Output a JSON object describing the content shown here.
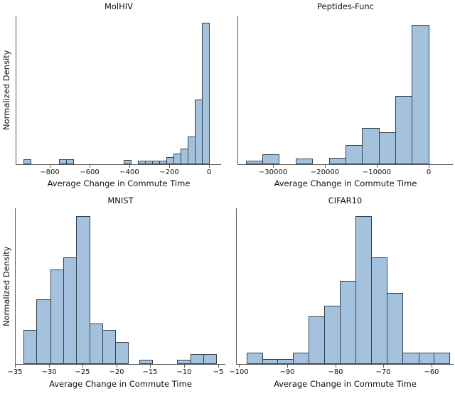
{
  "figure": {
    "background": "#ffffff",
    "bar_fill": "#a4c2de",
    "bar_edge": "#36414d",
    "spine_color": "#5a5a5a",
    "text_color": "#111111"
  },
  "chart_data": [
    {
      "type": "bar",
      "subtype": "histogram",
      "title": "MolHIV",
      "xlabel": "Average Change in Commute Time",
      "ylabel": "Normalized Density",
      "xlim": [
        -968,
        62
      ],
      "xticks": [
        -800,
        -600,
        -400,
        -200,
        0
      ],
      "yticks": [],
      "grid": false,
      "legend": false,
      "peak_fraction": 0.95,
      "bins": [
        {
          "x0": -930.8,
          "x1": -895.0,
          "h": 0.033
        },
        {
          "x0": -751.8,
          "x1": -716.0,
          "h": 0.033
        },
        {
          "x0": -716.0,
          "x1": -680.2,
          "h": 0.033
        },
        {
          "x0": -429.6,
          "x1": -393.8,
          "h": 0.03
        },
        {
          "x0": -358.0,
          "x1": -322.2,
          "h": 0.027
        },
        {
          "x0": -322.2,
          "x1": -286.4,
          "h": 0.027
        },
        {
          "x0": -286.4,
          "x1": -250.6,
          "h": 0.027
        },
        {
          "x0": -250.6,
          "x1": -214.8,
          "h": 0.027
        },
        {
          "x0": -214.8,
          "x1": -179.0,
          "h": 0.05
        },
        {
          "x0": -179.0,
          "x1": -143.2,
          "h": 0.075
        },
        {
          "x0": -143.2,
          "x1": -107.4,
          "h": 0.11
        },
        {
          "x0": -107.4,
          "x1": -71.6,
          "h": 0.195
        },
        {
          "x0": -71.6,
          "x1": -35.8,
          "h": 0.46
        },
        {
          "x0": -35.8,
          "x1": 0.0,
          "h": 1.0
        }
      ]
    },
    {
      "type": "bar",
      "subtype": "histogram",
      "title": "Peptides-Func",
      "xlabel": "Average Change in Commute Time",
      "ylabel": "",
      "xlim": [
        -36770,
        4700
      ],
      "xticks": [
        -30000,
        -20000,
        -10000,
        0
      ],
      "yticks": [],
      "grid": false,
      "legend": false,
      "peak_fraction": 0.94,
      "bins": [
        {
          "x0": -35310,
          "x1": -32100,
          "h": 0.025
        },
        {
          "x0": -32100,
          "x1": -28890,
          "h": 0.07
        },
        {
          "x0": -25680,
          "x1": -22470,
          "h": 0.04
        },
        {
          "x0": -19260,
          "x1": -16050,
          "h": 0.045
        },
        {
          "x0": -16050,
          "x1": -12840,
          "h": 0.135
        },
        {
          "x0": -12840,
          "x1": -9630,
          "h": 0.26
        },
        {
          "x0": -9630,
          "x1": -6420,
          "h": 0.23
        },
        {
          "x0": -6420,
          "x1": -3210,
          "h": 0.49
        },
        {
          "x0": -3210,
          "x1": 0,
          "h": 1.0
        }
      ]
    },
    {
      "type": "bar",
      "subtype": "histogram",
      "title": "MNIST",
      "xlabel": "Average Change in Commute Time",
      "ylabel": "Normalized Density",
      "xlim": [
        -34.9,
        -3.9
      ],
      "xticks": [
        -35,
        -30,
        -25,
        -20,
        -15,
        -10,
        -5
      ],
      "yticks": [],
      "grid": false,
      "legend": false,
      "peak_fraction": 0.95,
      "bins": [
        {
          "x0": -33.7,
          "x1": -31.8,
          "h": 0.23
        },
        {
          "x0": -31.8,
          "x1": -29.8,
          "h": 0.435
        },
        {
          "x0": -29.8,
          "x1": -27.9,
          "h": 0.64
        },
        {
          "x0": -27.9,
          "x1": -26.0,
          "h": 0.72
        },
        {
          "x0": -26.0,
          "x1": -24.0,
          "h": 1.0
        },
        {
          "x0": -24.0,
          "x1": -22.1,
          "h": 0.275
        },
        {
          "x0": -22.1,
          "x1": -20.2,
          "h": 0.232
        },
        {
          "x0": -20.2,
          "x1": -18.3,
          "h": 0.147
        },
        {
          "x0": -16.6,
          "x1": -14.7,
          "h": 0.027
        },
        {
          "x0": -11.0,
          "x1": -9.1,
          "h": 0.027
        },
        {
          "x0": -9.1,
          "x1": -7.2,
          "h": 0.067
        },
        {
          "x0": -7.2,
          "x1": -5.3,
          "h": 0.067
        }
      ]
    },
    {
      "type": "bar",
      "subtype": "histogram",
      "title": "CIFAR10",
      "xlabel": "Average Change in Commute Time",
      "ylabel": "",
      "xlim": [
        -100.5,
        -55.4
      ],
      "xticks": [
        -100,
        -90,
        -80,
        -70,
        -60
      ],
      "yticks": [],
      "grid": false,
      "legend": false,
      "peak_fraction": 0.95,
      "bins": [
        {
          "x0": -98.4,
          "x1": -95.2,
          "h": 0.075
        },
        {
          "x0": -95.2,
          "x1": -92.0,
          "h": 0.035
        },
        {
          "x0": -92.0,
          "x1": -88.8,
          "h": 0.035
        },
        {
          "x0": -88.8,
          "x1": -85.5,
          "h": 0.075
        },
        {
          "x0": -85.5,
          "x1": -82.3,
          "h": 0.32
        },
        {
          "x0": -82.3,
          "x1": -79.0,
          "h": 0.395
        },
        {
          "x0": -79.0,
          "x1": -75.8,
          "h": 0.56
        },
        {
          "x0": -75.8,
          "x1": -72.5,
          "h": 1.0
        },
        {
          "x0": -72.5,
          "x1": -69.3,
          "h": 0.72
        },
        {
          "x0": -69.3,
          "x1": -66.1,
          "h": 0.48
        },
        {
          "x0": -66.1,
          "x1": -62.7,
          "h": 0.075
        },
        {
          "x0": -62.7,
          "x1": -59.5,
          "h": 0.075
        },
        {
          "x0": -59.5,
          "x1": -56.3,
          "h": 0.075
        }
      ]
    }
  ]
}
